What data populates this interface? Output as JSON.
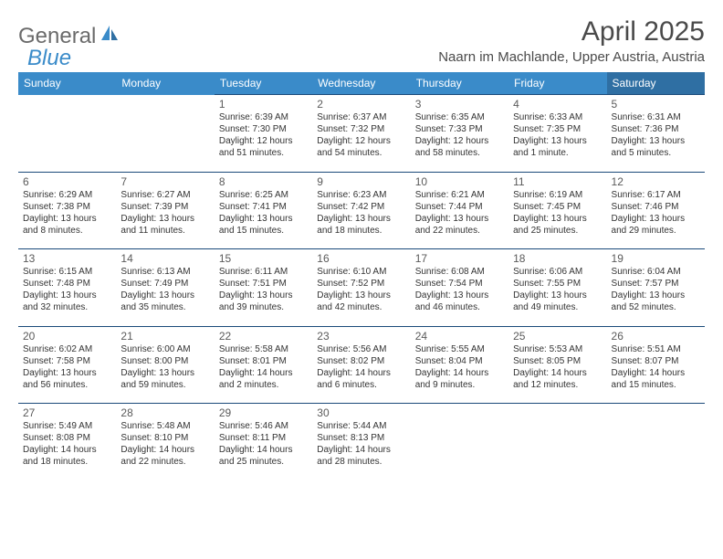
{
  "logo": {
    "text1": "General",
    "text2": "Blue"
  },
  "title": "April 2025",
  "location": "Naarn im Machlande, Upper Austria, Austria",
  "colors": {
    "header_bg": "#3a8bc9",
    "header_sat_bg": "#2f6fa3",
    "header_text": "#ffffff",
    "cell_border": "#1a4a7a",
    "logo_gray": "#6b6b6b",
    "logo_blue": "#3a8bc9",
    "text": "#333333"
  },
  "day_names": [
    "Sunday",
    "Monday",
    "Tuesday",
    "Wednesday",
    "Thursday",
    "Friday",
    "Saturday"
  ],
  "weeks": [
    [
      null,
      null,
      {
        "n": "1",
        "sr": "Sunrise: 6:39 AM",
        "ss": "Sunset: 7:30 PM",
        "dl": "Daylight: 12 hours and 51 minutes."
      },
      {
        "n": "2",
        "sr": "Sunrise: 6:37 AM",
        "ss": "Sunset: 7:32 PM",
        "dl": "Daylight: 12 hours and 54 minutes."
      },
      {
        "n": "3",
        "sr": "Sunrise: 6:35 AM",
        "ss": "Sunset: 7:33 PM",
        "dl": "Daylight: 12 hours and 58 minutes."
      },
      {
        "n": "4",
        "sr": "Sunrise: 6:33 AM",
        "ss": "Sunset: 7:35 PM",
        "dl": "Daylight: 13 hours and 1 minute."
      },
      {
        "n": "5",
        "sr": "Sunrise: 6:31 AM",
        "ss": "Sunset: 7:36 PM",
        "dl": "Daylight: 13 hours and 5 minutes."
      }
    ],
    [
      {
        "n": "6",
        "sr": "Sunrise: 6:29 AM",
        "ss": "Sunset: 7:38 PM",
        "dl": "Daylight: 13 hours and 8 minutes."
      },
      {
        "n": "7",
        "sr": "Sunrise: 6:27 AM",
        "ss": "Sunset: 7:39 PM",
        "dl": "Daylight: 13 hours and 11 minutes."
      },
      {
        "n": "8",
        "sr": "Sunrise: 6:25 AM",
        "ss": "Sunset: 7:41 PM",
        "dl": "Daylight: 13 hours and 15 minutes."
      },
      {
        "n": "9",
        "sr": "Sunrise: 6:23 AM",
        "ss": "Sunset: 7:42 PM",
        "dl": "Daylight: 13 hours and 18 minutes."
      },
      {
        "n": "10",
        "sr": "Sunrise: 6:21 AM",
        "ss": "Sunset: 7:44 PM",
        "dl": "Daylight: 13 hours and 22 minutes."
      },
      {
        "n": "11",
        "sr": "Sunrise: 6:19 AM",
        "ss": "Sunset: 7:45 PM",
        "dl": "Daylight: 13 hours and 25 minutes."
      },
      {
        "n": "12",
        "sr": "Sunrise: 6:17 AM",
        "ss": "Sunset: 7:46 PM",
        "dl": "Daylight: 13 hours and 29 minutes."
      }
    ],
    [
      {
        "n": "13",
        "sr": "Sunrise: 6:15 AM",
        "ss": "Sunset: 7:48 PM",
        "dl": "Daylight: 13 hours and 32 minutes."
      },
      {
        "n": "14",
        "sr": "Sunrise: 6:13 AM",
        "ss": "Sunset: 7:49 PM",
        "dl": "Daylight: 13 hours and 35 minutes."
      },
      {
        "n": "15",
        "sr": "Sunrise: 6:11 AM",
        "ss": "Sunset: 7:51 PM",
        "dl": "Daylight: 13 hours and 39 minutes."
      },
      {
        "n": "16",
        "sr": "Sunrise: 6:10 AM",
        "ss": "Sunset: 7:52 PM",
        "dl": "Daylight: 13 hours and 42 minutes."
      },
      {
        "n": "17",
        "sr": "Sunrise: 6:08 AM",
        "ss": "Sunset: 7:54 PM",
        "dl": "Daylight: 13 hours and 46 minutes."
      },
      {
        "n": "18",
        "sr": "Sunrise: 6:06 AM",
        "ss": "Sunset: 7:55 PM",
        "dl": "Daylight: 13 hours and 49 minutes."
      },
      {
        "n": "19",
        "sr": "Sunrise: 6:04 AM",
        "ss": "Sunset: 7:57 PM",
        "dl": "Daylight: 13 hours and 52 minutes."
      }
    ],
    [
      {
        "n": "20",
        "sr": "Sunrise: 6:02 AM",
        "ss": "Sunset: 7:58 PM",
        "dl": "Daylight: 13 hours and 56 minutes."
      },
      {
        "n": "21",
        "sr": "Sunrise: 6:00 AM",
        "ss": "Sunset: 8:00 PM",
        "dl": "Daylight: 13 hours and 59 minutes."
      },
      {
        "n": "22",
        "sr": "Sunrise: 5:58 AM",
        "ss": "Sunset: 8:01 PM",
        "dl": "Daylight: 14 hours and 2 minutes."
      },
      {
        "n": "23",
        "sr": "Sunrise: 5:56 AM",
        "ss": "Sunset: 8:02 PM",
        "dl": "Daylight: 14 hours and 6 minutes."
      },
      {
        "n": "24",
        "sr": "Sunrise: 5:55 AM",
        "ss": "Sunset: 8:04 PM",
        "dl": "Daylight: 14 hours and 9 minutes."
      },
      {
        "n": "25",
        "sr": "Sunrise: 5:53 AM",
        "ss": "Sunset: 8:05 PM",
        "dl": "Daylight: 14 hours and 12 minutes."
      },
      {
        "n": "26",
        "sr": "Sunrise: 5:51 AM",
        "ss": "Sunset: 8:07 PM",
        "dl": "Daylight: 14 hours and 15 minutes."
      }
    ],
    [
      {
        "n": "27",
        "sr": "Sunrise: 5:49 AM",
        "ss": "Sunset: 8:08 PM",
        "dl": "Daylight: 14 hours and 18 minutes."
      },
      {
        "n": "28",
        "sr": "Sunrise: 5:48 AM",
        "ss": "Sunset: 8:10 PM",
        "dl": "Daylight: 14 hours and 22 minutes."
      },
      {
        "n": "29",
        "sr": "Sunrise: 5:46 AM",
        "ss": "Sunset: 8:11 PM",
        "dl": "Daylight: 14 hours and 25 minutes."
      },
      {
        "n": "30",
        "sr": "Sunrise: 5:44 AM",
        "ss": "Sunset: 8:13 PM",
        "dl": "Daylight: 14 hours and 28 minutes."
      },
      null,
      null,
      null
    ]
  ]
}
